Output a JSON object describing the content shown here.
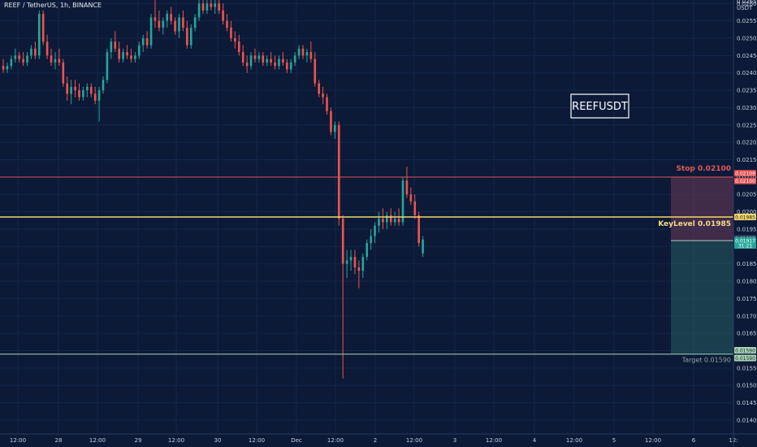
{
  "header": {
    "title": "REEF / TetherUS, 1h, BINANCE"
  },
  "chart_data": {
    "type": "candlestick",
    "symbol_label": "REEFUSDT",
    "currency": "USDT",
    "ylim": [
      0.0136,
      0.0261
    ],
    "y_ticks": [
      "0.01400",
      "0.01450",
      "0.01500",
      "0.01550",
      "0.01600",
      "0.01650",
      "0.01700",
      "0.01750",
      "0.01800",
      "0.01850",
      "0.01900",
      "0.01950",
      "0.02000",
      "0.02050",
      "0.02100",
      "0.02150",
      "0.02200",
      "0.02250",
      "0.02300",
      "0.02350",
      "0.02400",
      "0.02450",
      "0.02500",
      "0.02550",
      "0.02600"
    ],
    "x_ticks": [
      "12:00",
      "28",
      "12:00",
      "29",
      "12:00",
      "30",
      "12:00",
      "Dec",
      "12:00",
      "2",
      "12:00",
      "3",
      "12:00",
      "4",
      "12:00",
      "5",
      "12:00",
      "6",
      "12:"
    ],
    "stop": {
      "label": "Stop 0.02100",
      "value": 0.021,
      "tag": "0.02100",
      "tag2": "0.02109"
    },
    "key_level": {
      "label": "KeyLevel 0.01985",
      "value": 0.01985,
      "tag": "0.01985"
    },
    "target": {
      "label": "Target 0.01590",
      "value": 0.0159,
      "tag": "0.01590",
      "tag2": "0.01590"
    },
    "current_price": {
      "tag": "0.01917",
      "countdown": "31:21",
      "value": 0.01917
    },
    "prev_tag": {
      "tag": "0.01923",
      "value": 0.01923
    },
    "top_tag": "0.02650",
    "series": [
      {
        "o": 0.0242,
        "h": 0.0244,
        "l": 0.024,
        "c": 0.0241
      },
      {
        "o": 0.0241,
        "h": 0.0243,
        "l": 0.024,
        "c": 0.0242
      },
      {
        "o": 0.0242,
        "h": 0.0245,
        "l": 0.0241,
        "c": 0.0244
      },
      {
        "o": 0.0244,
        "h": 0.0247,
        "l": 0.0243,
        "c": 0.0245
      },
      {
        "o": 0.0245,
        "h": 0.0246,
        "l": 0.0243,
        "c": 0.0244
      },
      {
        "o": 0.0244,
        "h": 0.0246,
        "l": 0.0242,
        "c": 0.0243
      },
      {
        "o": 0.0243,
        "h": 0.0246,
        "l": 0.0242,
        "c": 0.0245
      },
      {
        "o": 0.0245,
        "h": 0.0248,
        "l": 0.0244,
        "c": 0.0247
      },
      {
        "o": 0.0247,
        "h": 0.0249,
        "l": 0.0244,
        "c": 0.0245
      },
      {
        "o": 0.0245,
        "h": 0.0258,
        "l": 0.0244,
        "c": 0.0257
      },
      {
        "o": 0.0257,
        "h": 0.0258,
        "l": 0.0248,
        "c": 0.0249
      },
      {
        "o": 0.0249,
        "h": 0.0251,
        "l": 0.0244,
        "c": 0.0245
      },
      {
        "o": 0.0245,
        "h": 0.0247,
        "l": 0.0242,
        "c": 0.0243
      },
      {
        "o": 0.0243,
        "h": 0.0246,
        "l": 0.0241,
        "c": 0.0244
      },
      {
        "o": 0.0244,
        "h": 0.0247,
        "l": 0.0242,
        "c": 0.0243
      },
      {
        "o": 0.0243,
        "h": 0.0244,
        "l": 0.0236,
        "c": 0.0237
      },
      {
        "o": 0.0237,
        "h": 0.0239,
        "l": 0.0232,
        "c": 0.0234
      },
      {
        "o": 0.0234,
        "h": 0.0238,
        "l": 0.0231,
        "c": 0.0236
      },
      {
        "o": 0.0236,
        "h": 0.0238,
        "l": 0.0233,
        "c": 0.0235
      },
      {
        "o": 0.0235,
        "h": 0.0237,
        "l": 0.0232,
        "c": 0.0233
      },
      {
        "o": 0.0233,
        "h": 0.0236,
        "l": 0.0232,
        "c": 0.0235
      },
      {
        "o": 0.0235,
        "h": 0.0237,
        "l": 0.0233,
        "c": 0.0236
      },
      {
        "o": 0.0236,
        "h": 0.0237,
        "l": 0.0233,
        "c": 0.0234
      },
      {
        "o": 0.0234,
        "h": 0.0236,
        "l": 0.0231,
        "c": 0.0232
      },
      {
        "o": 0.0232,
        "h": 0.0236,
        "l": 0.0226,
        "c": 0.0235
      },
      {
        "o": 0.0235,
        "h": 0.0239,
        "l": 0.0234,
        "c": 0.0238
      },
      {
        "o": 0.0238,
        "h": 0.0247,
        "l": 0.0237,
        "c": 0.0246
      },
      {
        "o": 0.0246,
        "h": 0.025,
        "l": 0.0244,
        "c": 0.0249
      },
      {
        "o": 0.0249,
        "h": 0.0252,
        "l": 0.0246,
        "c": 0.0247
      },
      {
        "o": 0.0247,
        "h": 0.0249,
        "l": 0.0243,
        "c": 0.0244
      },
      {
        "o": 0.0244,
        "h": 0.0247,
        "l": 0.0243,
        "c": 0.0246
      },
      {
        "o": 0.0246,
        "h": 0.0248,
        "l": 0.0244,
        "c": 0.0245
      },
      {
        "o": 0.0245,
        "h": 0.0247,
        "l": 0.0243,
        "c": 0.0244
      },
      {
        "o": 0.0244,
        "h": 0.0246,
        "l": 0.0243,
        "c": 0.0245
      },
      {
        "o": 0.0245,
        "h": 0.0249,
        "l": 0.0244,
        "c": 0.0248
      },
      {
        "o": 0.0248,
        "h": 0.0251,
        "l": 0.0246,
        "c": 0.025
      },
      {
        "o": 0.025,
        "h": 0.0252,
        "l": 0.0247,
        "c": 0.0248
      },
      {
        "o": 0.0248,
        "h": 0.0257,
        "l": 0.0247,
        "c": 0.0256
      },
      {
        "o": 0.0256,
        "h": 0.0261,
        "l": 0.0253,
        "c": 0.0255
      },
      {
        "o": 0.0255,
        "h": 0.0258,
        "l": 0.0252,
        "c": 0.0253
      },
      {
        "o": 0.0253,
        "h": 0.0256,
        "l": 0.0251,
        "c": 0.0255
      },
      {
        "o": 0.0255,
        "h": 0.0258,
        "l": 0.0253,
        "c": 0.0257
      },
      {
        "o": 0.0257,
        "h": 0.0259,
        "l": 0.0254,
        "c": 0.0255
      },
      {
        "o": 0.0255,
        "h": 0.0256,
        "l": 0.0251,
        "c": 0.0252
      },
      {
        "o": 0.0252,
        "h": 0.0257,
        "l": 0.025,
        "c": 0.0256
      },
      {
        "o": 0.0256,
        "h": 0.0258,
        "l": 0.0252,
        "c": 0.0253
      },
      {
        "o": 0.0253,
        "h": 0.0255,
        "l": 0.0247,
        "c": 0.0248
      },
      {
        "o": 0.0248,
        "h": 0.0254,
        "l": 0.0247,
        "c": 0.0253
      },
      {
        "o": 0.0253,
        "h": 0.0257,
        "l": 0.0252,
        "c": 0.0256
      },
      {
        "o": 0.0256,
        "h": 0.0261,
        "l": 0.0255,
        "c": 0.026
      },
      {
        "o": 0.026,
        "h": 0.0262,
        "l": 0.0257,
        "c": 0.0258
      },
      {
        "o": 0.0258,
        "h": 0.0261,
        "l": 0.0257,
        "c": 0.026
      },
      {
        "o": 0.026,
        "h": 0.0262,
        "l": 0.0258,
        "c": 0.0259
      },
      {
        "o": 0.0259,
        "h": 0.0261,
        "l": 0.0257,
        "c": 0.026
      },
      {
        "o": 0.026,
        "h": 0.0262,
        "l": 0.0257,
        "c": 0.0258
      },
      {
        "o": 0.0258,
        "h": 0.026,
        "l": 0.0254,
        "c": 0.0255
      },
      {
        "o": 0.0255,
        "h": 0.0257,
        "l": 0.0252,
        "c": 0.0253
      },
      {
        "o": 0.0253,
        "h": 0.0255,
        "l": 0.0249,
        "c": 0.025
      },
      {
        "o": 0.025,
        "h": 0.0252,
        "l": 0.0247,
        "c": 0.0249
      },
      {
        "o": 0.0249,
        "h": 0.0251,
        "l": 0.0245,
        "c": 0.0246
      },
      {
        "o": 0.0246,
        "h": 0.0248,
        "l": 0.0242,
        "c": 0.0243
      },
      {
        "o": 0.0243,
        "h": 0.0245,
        "l": 0.024,
        "c": 0.0242
      },
      {
        "o": 0.0242,
        "h": 0.0246,
        "l": 0.0241,
        "c": 0.0245
      },
      {
        "o": 0.0245,
        "h": 0.0247,
        "l": 0.0243,
        "c": 0.0244
      },
      {
        "o": 0.0244,
        "h": 0.0246,
        "l": 0.0243,
        "c": 0.0245
      },
      {
        "o": 0.0245,
        "h": 0.0246,
        "l": 0.0242,
        "c": 0.0243
      },
      {
        "o": 0.0243,
        "h": 0.0245,
        "l": 0.0242,
        "c": 0.0244
      },
      {
        "o": 0.0244,
        "h": 0.0246,
        "l": 0.0242,
        "c": 0.0243
      },
      {
        "o": 0.0243,
        "h": 0.0245,
        "l": 0.0241,
        "c": 0.0242
      },
      {
        "o": 0.0242,
        "h": 0.0245,
        "l": 0.0241,
        "c": 0.0244
      },
      {
        "o": 0.0244,
        "h": 0.0246,
        "l": 0.0242,
        "c": 0.0243
      },
      {
        "o": 0.0243,
        "h": 0.0244,
        "l": 0.024,
        "c": 0.0241
      },
      {
        "o": 0.0241,
        "h": 0.0244,
        "l": 0.024,
        "c": 0.0243
      },
      {
        "o": 0.0243,
        "h": 0.0246,
        "l": 0.0242,
        "c": 0.0245
      },
      {
        "o": 0.0245,
        "h": 0.0248,
        "l": 0.0244,
        "c": 0.0247
      },
      {
        "o": 0.0247,
        "h": 0.0248,
        "l": 0.0244,
        "c": 0.0245
      },
      {
        "o": 0.0245,
        "h": 0.0247,
        "l": 0.0243,
        "c": 0.0246
      },
      {
        "o": 0.0246,
        "h": 0.0249,
        "l": 0.0243,
        "c": 0.0244
      },
      {
        "o": 0.0244,
        "h": 0.0246,
        "l": 0.0236,
        "c": 0.0237
      },
      {
        "o": 0.0237,
        "h": 0.0238,
        "l": 0.0233,
        "c": 0.0234
      },
      {
        "o": 0.0234,
        "h": 0.0236,
        "l": 0.0231,
        "c": 0.0233
      },
      {
        "o": 0.0233,
        "h": 0.0234,
        "l": 0.0228,
        "c": 0.0229
      },
      {
        "o": 0.0229,
        "h": 0.023,
        "l": 0.0222,
        "c": 0.0223
      },
      {
        "o": 0.0223,
        "h": 0.0226,
        "l": 0.0221,
        "c": 0.0225
      },
      {
        "o": 0.0225,
        "h": 0.0226,
        "l": 0.0196,
        "c": 0.0198
      },
      {
        "o": 0.0198,
        "h": 0.0199,
        "l": 0.0152,
        "c": 0.0185
      },
      {
        "o": 0.0185,
        "h": 0.0189,
        "l": 0.0181,
        "c": 0.0186
      },
      {
        "o": 0.0186,
        "h": 0.0189,
        "l": 0.0183,
        "c": 0.0187
      },
      {
        "o": 0.0187,
        "h": 0.0189,
        "l": 0.0182,
        "c": 0.0184
      },
      {
        "o": 0.0184,
        "h": 0.0186,
        "l": 0.0178,
        "c": 0.0183
      },
      {
        "o": 0.0183,
        "h": 0.0188,
        "l": 0.0181,
        "c": 0.0187
      },
      {
        "o": 0.0187,
        "h": 0.0192,
        "l": 0.0186,
        "c": 0.0191
      },
      {
        "o": 0.0191,
        "h": 0.0195,
        "l": 0.0189,
        "c": 0.0193
      },
      {
        "o": 0.0193,
        "h": 0.0197,
        "l": 0.0191,
        "c": 0.0196
      },
      {
        "o": 0.0196,
        "h": 0.02,
        "l": 0.0194,
        "c": 0.0198
      },
      {
        "o": 0.0198,
        "h": 0.0201,
        "l": 0.0195,
        "c": 0.0197
      },
      {
        "o": 0.0197,
        "h": 0.02,
        "l": 0.0195,
        "c": 0.0199
      },
      {
        "o": 0.0199,
        "h": 0.0201,
        "l": 0.0196,
        "c": 0.0197
      },
      {
        "o": 0.0197,
        "h": 0.02,
        "l": 0.0196,
        "c": 0.0198
      },
      {
        "o": 0.0198,
        "h": 0.0201,
        "l": 0.0196,
        "c": 0.0197
      },
      {
        "o": 0.0197,
        "h": 0.021,
        "l": 0.0196,
        "c": 0.0209
      },
      {
        "o": 0.0209,
        "h": 0.0213,
        "l": 0.0204,
        "c": 0.0205
      },
      {
        "o": 0.0205,
        "h": 0.0207,
        "l": 0.0202,
        "c": 0.0203
      },
      {
        "o": 0.0203,
        "h": 0.0205,
        "l": 0.0198,
        "c": 0.0199
      },
      {
        "o": 0.0199,
        "h": 0.02,
        "l": 0.019,
        "c": 0.0191
      },
      {
        "o": 0.0188,
        "h": 0.0193,
        "l": 0.0187,
        "c": 0.0192
      }
    ]
  }
}
